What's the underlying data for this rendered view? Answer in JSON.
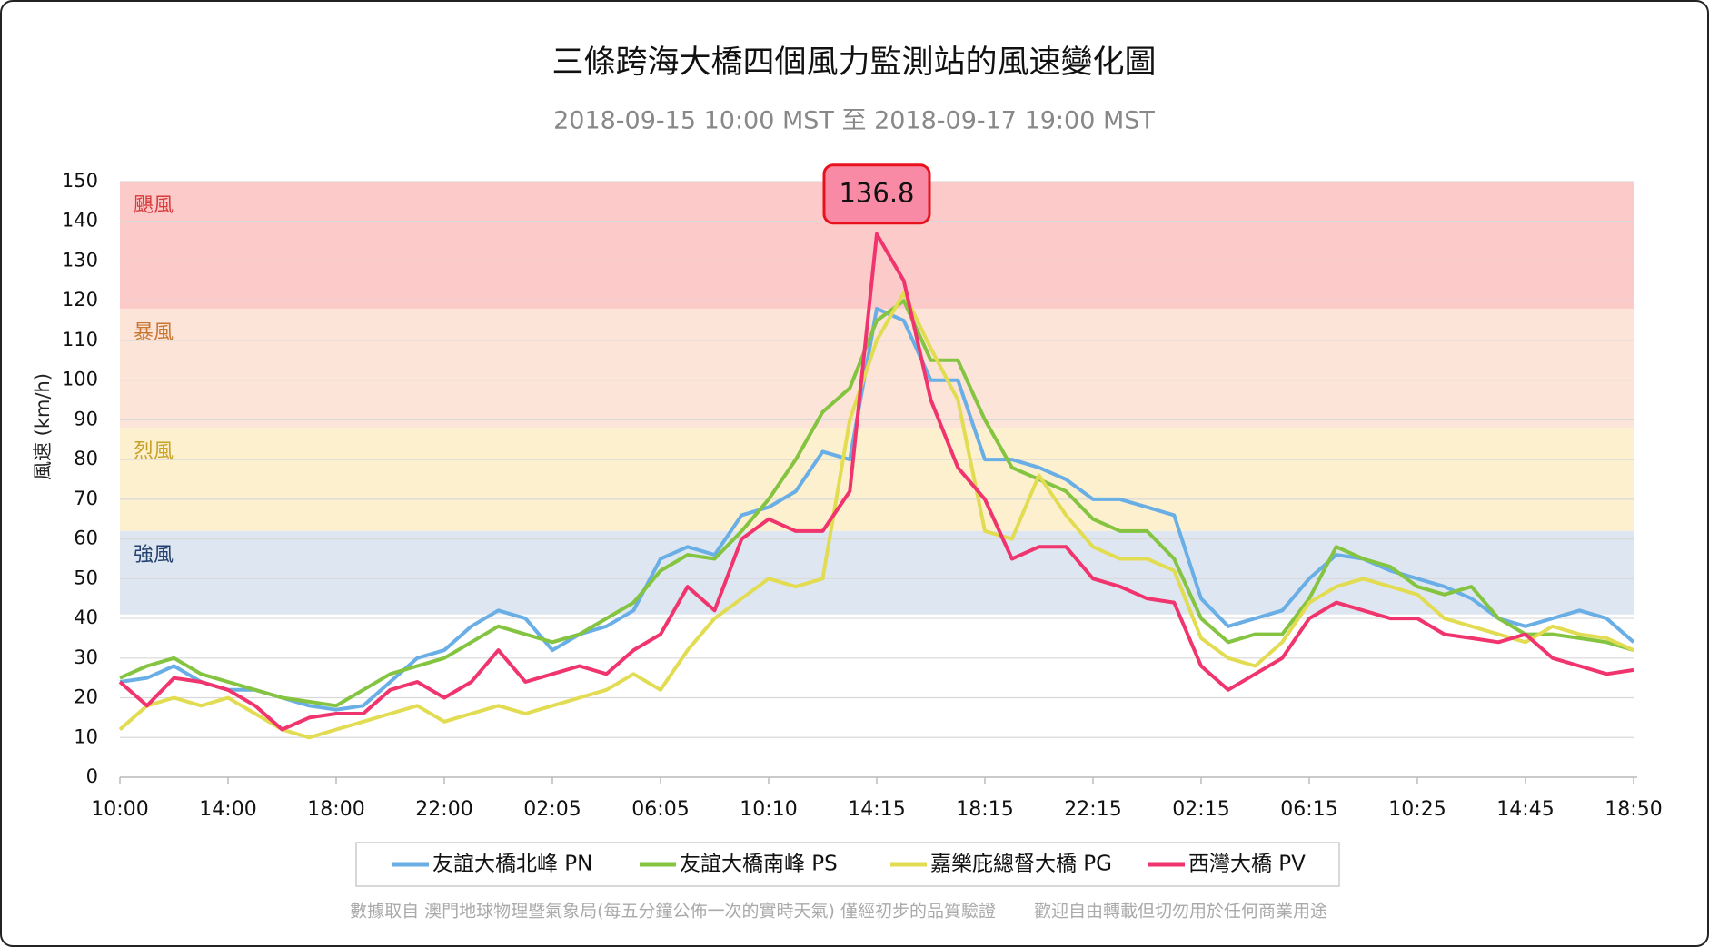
{
  "chart_data": {
    "type": "line",
    "title": "三條跨海大橋四個風力監測站的風速變化圖",
    "subtitle": "2018-09-15 10:00 MST 至 2018-09-17 19:00 MST",
    "y_label": "風速 (km/h)",
    "footer": [
      "數據取自 澳門地球物理暨氣象局(每五分鐘公佈一次的實時天氣) 僅經初步的品質驗證",
      "歡迎自由轉載但切勿用於任何商業用途"
    ],
    "categories": [
      "10:00",
      null,
      null,
      null,
      "14:00",
      null,
      null,
      null,
      "18:00",
      null,
      null,
      null,
      "22:00",
      null,
      null,
      null,
      "02:05",
      null,
      null,
      null,
      "06:05",
      null,
      null,
      null,
      "10:10",
      null,
      null,
      null,
      "14:15",
      null,
      null,
      null,
      "18:15",
      null,
      null,
      null,
      "22:15",
      null,
      null,
      null,
      "02:15",
      null,
      null,
      null,
      "06:15",
      null,
      null,
      null,
      "10:25",
      null,
      null,
      null,
      "14:45",
      null,
      null,
      null,
      "18:50"
    ],
    "ylim": [
      0,
      150
    ],
    "yticks": [
      0,
      10,
      20,
      30,
      40,
      50,
      60,
      70,
      80,
      90,
      100,
      110,
      120,
      130,
      140,
      150
    ],
    "grid": true,
    "bands": [
      {
        "label": "颶風",
        "from": 118,
        "to": 150,
        "color": "#fdcaca",
        "label_color": "#d83a3a"
      },
      {
        "label": "暴風",
        "from": 88,
        "to": 118,
        "color": "#fce4d8",
        "label_color": "#c8752f"
      },
      {
        "label": "烈風",
        "from": 62,
        "to": 88,
        "color": "#fdf0cf",
        "label_color": "#c7a226"
      },
      {
        "label": "強風",
        "from": 41,
        "to": 62,
        "color": "#dee7f1",
        "label_color": "#23416e"
      }
    ],
    "series": [
      {
        "name": "友誼大橋北峰 PN",
        "color": "#6aaee6",
        "values": [
          24,
          25,
          28,
          24,
          22,
          22,
          20,
          18,
          17,
          18,
          24,
          30,
          32,
          38,
          42,
          40,
          32,
          36,
          38,
          42,
          55,
          58,
          56,
          66,
          68,
          72,
          82,
          80,
          118,
          115,
          100,
          100,
          80,
          80,
          78,
          75,
          70,
          70,
          68,
          66,
          45,
          38,
          40,
          42,
          50,
          56,
          55,
          52,
          50,
          48,
          45,
          40,
          38,
          40,
          42,
          40,
          34
        ]
      },
      {
        "name": "友誼大橋南峰 PS",
        "color": "#84c441",
        "values": [
          25,
          28,
          30,
          26,
          24,
          22,
          20,
          19,
          18,
          22,
          26,
          28,
          30,
          34,
          38,
          36,
          34,
          36,
          40,
          44,
          52,
          56,
          55,
          62,
          70,
          80,
          92,
          98,
          115,
          120,
          105,
          105,
          90,
          78,
          75,
          72,
          65,
          62,
          62,
          55,
          40,
          34,
          36,
          36,
          45,
          58,
          55,
          53,
          48,
          46,
          48,
          40,
          36,
          36,
          35,
          34,
          32
        ]
      },
      {
        "name": "嘉樂庇總督大橋 PG",
        "color": "#e2dc52",
        "values": [
          12,
          18,
          20,
          18,
          20,
          16,
          12,
          10,
          12,
          14,
          16,
          18,
          14,
          16,
          18,
          16,
          18,
          20,
          22,
          26,
          22,
          32,
          40,
          45,
          50,
          48,
          50,
          90,
          110,
          122,
          108,
          95,
          62,
          60,
          76,
          66,
          58,
          55,
          55,
          52,
          35,
          30,
          28,
          34,
          44,
          48,
          50,
          48,
          46,
          40,
          38,
          36,
          34,
          38,
          36,
          35,
          32
        ]
      },
      {
        "name": "西灣大橋 PV",
        "color": "#f0356e",
        "values": [
          24,
          18,
          25,
          24,
          22,
          18,
          12,
          15,
          16,
          16,
          22,
          24,
          20,
          24,
          32,
          24,
          26,
          28,
          26,
          32,
          36,
          48,
          42,
          60,
          65,
          62,
          62,
          72,
          136.8,
          125,
          95,
          78,
          70,
          55,
          58,
          58,
          50,
          48,
          45,
          44,
          28,
          22,
          26,
          30,
          40,
          44,
          42,
          40,
          40,
          36,
          35,
          34,
          36,
          30,
          28,
          26,
          27
        ]
      }
    ]
  }
}
